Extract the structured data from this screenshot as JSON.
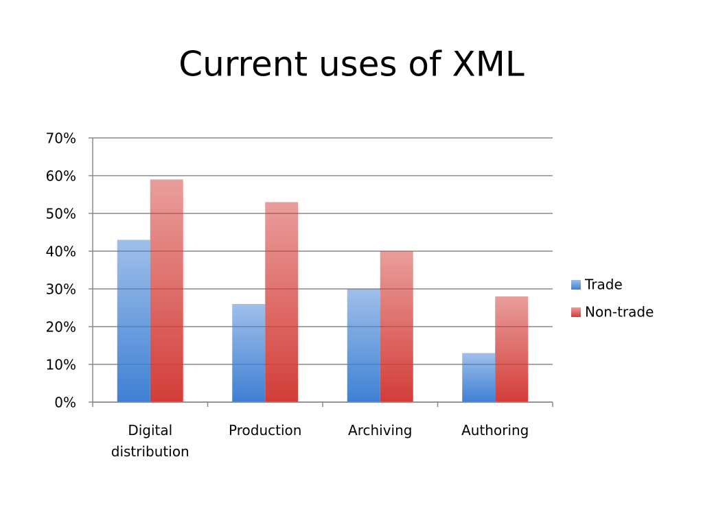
{
  "chart_data": {
    "type": "bar",
    "title": "Current uses of XML",
    "categories": [
      "Digital distribution",
      "Production",
      "Archiving",
      "Authoring"
    ],
    "series": [
      {
        "name": "Trade",
        "color": "#3f80d4",
        "values": [
          43,
          26,
          30,
          13
        ]
      },
      {
        "name": "Non-trade",
        "color": "#d33d38",
        "values": [
          59,
          53,
          40,
          28
        ]
      }
    ],
    "ylim": [
      0,
      70
    ],
    "yticks": [
      {
        "value": 0,
        "label": "0%"
      },
      {
        "value": 10,
        "label": "10%"
      },
      {
        "value": 20,
        "label": "20%"
      },
      {
        "value": 30,
        "label": "30%"
      },
      {
        "value": 40,
        "label": "40%"
      },
      {
        "value": 50,
        "label": "50%"
      },
      {
        "value": 60,
        "label": "60%"
      },
      {
        "value": 70,
        "label": "70%"
      }
    ],
    "grid": true,
    "legend": "right"
  }
}
